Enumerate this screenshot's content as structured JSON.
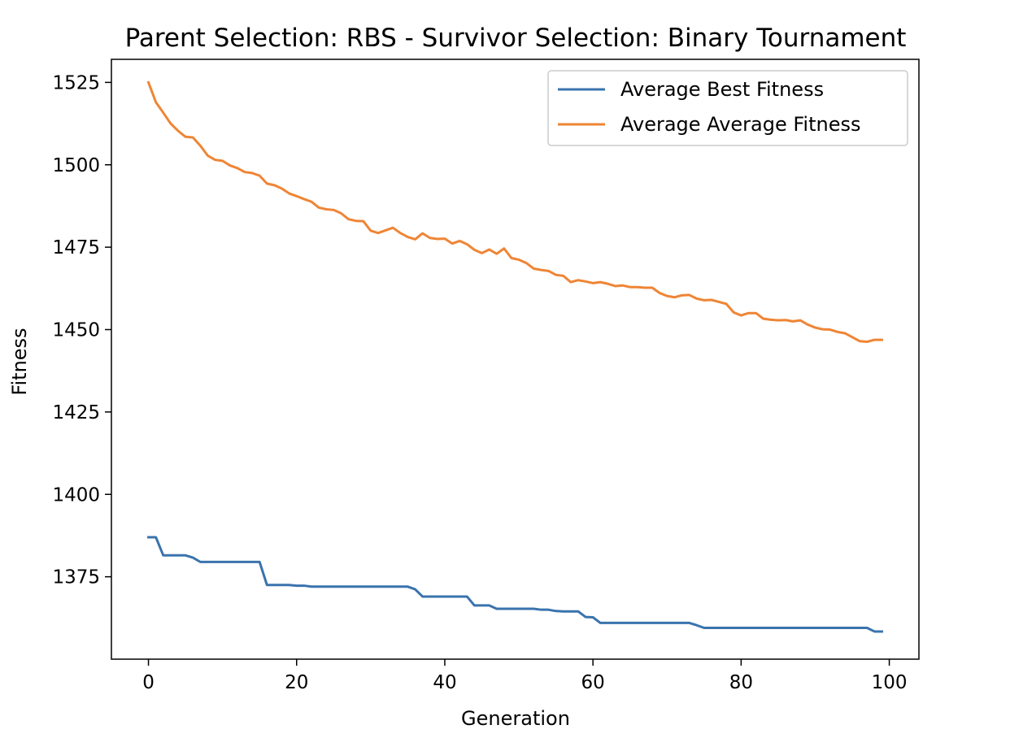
{
  "chart_data": {
    "type": "line",
    "title": "Parent Selection: RBS - Survivor Selection: Binary Tournament",
    "xlabel": "Generation",
    "ylabel": "Fitness",
    "xlim": [
      -5,
      104
    ],
    "ylim": [
      1350,
      1532
    ],
    "xticks": [
      0,
      20,
      40,
      60,
      80,
      100
    ],
    "yticks": [
      1375,
      1400,
      1425,
      1450,
      1475,
      1500,
      1525
    ],
    "grid": false,
    "legend": "top-right",
    "series": [
      {
        "name": "Average Best Fitness",
        "color": "#3a73ad",
        "x": [
          0,
          1,
          2,
          3,
          4,
          5,
          6,
          7,
          8,
          9,
          10,
          11,
          12,
          13,
          14,
          15,
          16,
          17,
          18,
          19,
          20,
          21,
          22,
          23,
          24,
          25,
          26,
          27,
          28,
          29,
          30,
          31,
          32,
          33,
          34,
          35,
          36,
          37,
          38,
          39,
          40,
          41,
          42,
          43,
          44,
          45,
          46,
          47,
          48,
          49,
          50,
          51,
          52,
          53,
          54,
          55,
          56,
          57,
          58,
          59,
          60,
          61,
          62,
          63,
          64,
          65,
          66,
          67,
          68,
          69,
          70,
          71,
          72,
          73,
          74,
          75,
          76,
          77,
          78,
          79,
          80,
          81,
          82,
          83,
          84,
          85,
          86,
          87,
          88,
          89,
          90,
          91,
          92,
          93,
          94,
          95,
          96,
          97,
          98,
          99
        ],
        "y": [
          1387.0,
          1387.0,
          1381.5,
          1381.5,
          1381.5,
          1381.5,
          1380.8,
          1379.5,
          1379.5,
          1379.5,
          1379.5,
          1379.5,
          1379.5,
          1379.5,
          1379.5,
          1379.5,
          1372.5,
          1372.5,
          1372.5,
          1372.5,
          1372.3,
          1372.3,
          1372.0,
          1372.0,
          1372.0,
          1372.0,
          1372.0,
          1372.0,
          1372.0,
          1372.0,
          1372.0,
          1372.0,
          1372.0,
          1372.0,
          1372.0,
          1372.0,
          1371.2,
          1369.0,
          1369.0,
          1369.0,
          1369.0,
          1369.0,
          1369.0,
          1369.0,
          1366.3,
          1366.3,
          1366.3,
          1365.3,
          1365.3,
          1365.3,
          1365.3,
          1365.3,
          1365.3,
          1365.0,
          1365.0,
          1364.6,
          1364.5,
          1364.5,
          1364.5,
          1362.8,
          1362.7,
          1361.0,
          1361.0,
          1361.0,
          1361.0,
          1361.0,
          1361.0,
          1361.0,
          1361.0,
          1361.0,
          1361.0,
          1361.0,
          1361.0,
          1361.0,
          1360.3,
          1359.5,
          1359.5,
          1359.5,
          1359.5,
          1359.5,
          1359.5,
          1359.5,
          1359.5,
          1359.5,
          1359.5,
          1359.5,
          1359.5,
          1359.5,
          1359.5,
          1359.5,
          1359.5,
          1359.5,
          1359.5,
          1359.5,
          1359.5,
          1359.5,
          1359.5,
          1359.5,
          1358.4,
          1358.4
        ]
      },
      {
        "name": "Average Average Fitness",
        "color": "#ef8535",
        "x": [
          0,
          1,
          2,
          3,
          4,
          5,
          6,
          7,
          8,
          9,
          10,
          11,
          12,
          13,
          14,
          15,
          16,
          17,
          18,
          19,
          20,
          21,
          22,
          23,
          24,
          25,
          26,
          27,
          28,
          29,
          30,
          31,
          32,
          33,
          34,
          35,
          36,
          37,
          38,
          39,
          40,
          41,
          42,
          43,
          44,
          45,
          46,
          47,
          48,
          49,
          50,
          51,
          52,
          53,
          54,
          55,
          56,
          57,
          58,
          59,
          60,
          61,
          62,
          63,
          64,
          65,
          66,
          67,
          68,
          69,
          70,
          71,
          72,
          73,
          74,
          75,
          76,
          77,
          78,
          79,
          80,
          81,
          82,
          83,
          84,
          85,
          86,
          87,
          88,
          89,
          90,
          91,
          92,
          93,
          94,
          95,
          96,
          97,
          98,
          99
        ],
        "y": [
          1525.0,
          1519.0,
          1515.8,
          1512.5,
          1510.3,
          1508.5,
          1508.3,
          1505.8,
          1502.8,
          1501.5,
          1501.2,
          1499.8,
          1499.0,
          1497.8,
          1497.5,
          1496.7,
          1494.3,
          1493.8,
          1492.8,
          1491.3,
          1490.5,
          1489.6,
          1488.8,
          1487.0,
          1486.5,
          1486.3,
          1485.3,
          1483.5,
          1483.0,
          1482.9,
          1480.0,
          1479.3,
          1480.1,
          1480.9,
          1479.3,
          1478.1,
          1477.4,
          1479.2,
          1477.8,
          1477.5,
          1477.6,
          1476.1,
          1476.9,
          1475.9,
          1474.2,
          1473.2,
          1474.3,
          1473.0,
          1474.6,
          1471.7,
          1471.2,
          1470.2,
          1468.5,
          1468.1,
          1467.8,
          1466.6,
          1466.3,
          1464.4,
          1465.0,
          1464.6,
          1464.1,
          1464.4,
          1463.9,
          1463.2,
          1463.4,
          1462.9,
          1462.9,
          1462.7,
          1462.7,
          1461.1,
          1460.2,
          1459.8,
          1460.4,
          1460.5,
          1459.4,
          1458.9,
          1459.0,
          1458.4,
          1457.8,
          1455.2,
          1454.3,
          1455.0,
          1455.0,
          1453.3,
          1453.0,
          1452.8,
          1452.9,
          1452.5,
          1452.8,
          1451.5,
          1450.6,
          1450.1,
          1450.0,
          1449.3,
          1448.9,
          1447.7,
          1446.5,
          1446.3,
          1446.9,
          1446.9
        ]
      }
    ]
  }
}
